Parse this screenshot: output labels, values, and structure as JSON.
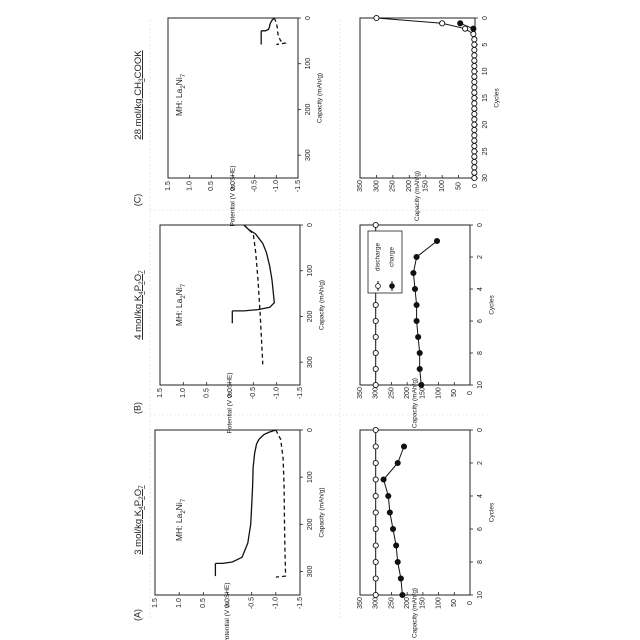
{
  "columns": [
    {
      "letter": "(A)",
      "title_main": "3 mol/kg K",
      "title_sub1": "4",
      "title_mid": "P",
      "title_sub2": "2",
      "title_end": "O",
      "title_sub3": "7",
      "mh_main": "MH: La",
      "mh_sub1": "2",
      "mh_mid": "Ni",
      "mh_sub2": "7"
    },
    {
      "letter": "(B)",
      "title_main": "4 mol/kg K",
      "title_sub1": "4",
      "title_mid": "P",
      "title_sub2": "2",
      "title_end": "O",
      "title_sub3": "7",
      "mh_main": "MH: La",
      "mh_sub1": "2",
      "mh_mid": "Ni",
      "mh_sub2": "7"
    },
    {
      "letter": "(C)",
      "title_main": "28 mol/kg CH",
      "title_sub1": "3",
      "title_mid": "COOK",
      "title_sub2": "",
      "title_end": "",
      "title_sub3": "",
      "mh_main": "MH: La",
      "mh_sub1": "2",
      "mh_mid": "Ni",
      "mh_sub2": "7"
    }
  ],
  "chart_data": [
    {
      "panel": "A-top",
      "type": "line",
      "xlabel": "Capacity (mAh/g)",
      "ylabel": "Potential (V vs. SHE)",
      "xlim": [
        0,
        350
      ],
      "ylim": [
        -1.5,
        1.5
      ],
      "xticks": [
        "0",
        "100",
        "200",
        "300"
      ],
      "yticks": [
        "1.5",
        "1.0",
        "0.5",
        "0.0",
        "-0.5",
        "-1.0",
        "-1.5"
      ],
      "series": [
        {
          "style": "solid",
          "x": [
            0,
            5,
            10,
            20,
            30,
            50,
            80,
            120,
            160,
            200,
            240,
            270,
            280,
            283,
            283
          ],
          "y": [
            -1.0,
            -0.85,
            -0.75,
            -0.65,
            -0.6,
            -0.56,
            -0.53,
            -0.52,
            -0.5,
            -0.48,
            -0.42,
            -0.3,
            -0.1,
            0.1,
            0.25
          ]
        },
        {
          "style": "solid",
          "x": [
            283,
            310
          ],
          "y": [
            0.25,
            0.25
          ]
        },
        {
          "style": "dashed",
          "x": [
            0,
            20,
            60,
            120,
            200,
            260,
            300,
            310,
            312
          ],
          "y": [
            -1.0,
            -1.1,
            -1.15,
            -1.17,
            -1.18,
            -1.19,
            -1.2,
            -1.2,
            -1.0
          ]
        }
      ]
    },
    {
      "panel": "B-top",
      "type": "line",
      "xlabel": "Capacity (mAh/g)",
      "ylabel": "Potential (V vs. SHE)",
      "xlim": [
        0,
        350
      ],
      "ylim": [
        -1.5,
        1.5
      ],
      "xticks": [
        "0",
        "100",
        "200",
        "300"
      ],
      "yticks": [
        "1.5",
        "1.0",
        "0.5",
        "0.0",
        "-0.5",
        "-1.0",
        "-1.5"
      ],
      "series": [
        {
          "style": "solid",
          "x": [
            0,
            10,
            20,
            40,
            60,
            90,
            120,
            150,
            170,
            180,
            185,
            188,
            188
          ],
          "y": [
            -0.3,
            -0.4,
            -0.55,
            -0.7,
            -0.78,
            -0.85,
            -0.9,
            -0.93,
            -0.95,
            -0.85,
            -0.6,
            -0.3,
            -0.05
          ]
        },
        {
          "style": "solid",
          "x": [
            188,
            215
          ],
          "y": [
            -0.05,
            -0.05
          ]
        },
        {
          "style": "dashed",
          "x": [
            0,
            20,
            60,
            120,
            200,
            260,
            300,
            305
          ],
          "y": [
            -0.3,
            -0.5,
            -0.55,
            -0.6,
            -0.65,
            -0.68,
            -0.7,
            -0.7
          ]
        }
      ]
    },
    {
      "panel": "C-top",
      "type": "line",
      "xlabel": "Capacity (mAh/g)",
      "ylabel": "Potential (V vs. SHE)",
      "xlim": [
        0,
        350
      ],
      "ylim": [
        -1.5,
        1.5
      ],
      "xticks": [
        "0",
        "100",
        "200",
        "300"
      ],
      "yticks": [
        "1.5",
        "1.0",
        "0.5",
        "0.0",
        "-0.5",
        "-1.0",
        "-1.5"
      ],
      "series": [
        {
          "style": "solid",
          "x": [
            0,
            5,
            10,
            15,
            20,
            25,
            28,
            28
          ],
          "y": [
            -0.95,
            -0.9,
            -0.87,
            -0.85,
            -0.84,
            -0.82,
            -0.75,
            -0.65
          ]
        },
        {
          "style": "solid",
          "x": [
            28,
            58
          ],
          "y": [
            -0.65,
            -0.65
          ]
        },
        {
          "style": "dashed",
          "x": [
            0,
            10,
            20,
            30,
            40,
            50,
            55,
            58
          ],
          "y": [
            -0.95,
            -1.0,
            -1.02,
            -1.03,
            -1.05,
            -1.1,
            -1.2,
            -1.0
          ]
        }
      ]
    },
    {
      "panel": "A-bottom",
      "type": "scatter",
      "xlabel": "Cycles",
      "ylabel": "Capacity (mAh/g)",
      "xlim": [
        0,
        10
      ],
      "ylim": [
        0,
        350
      ],
      "xticks": [
        "0",
        "2",
        "4",
        "6",
        "8",
        "10"
      ],
      "yticks": [
        "350",
        "300",
        "250",
        "200",
        "150",
        "100",
        "50",
        "0"
      ],
      "series": [
        {
          "name": "discharge",
          "marker": "open",
          "x": [
            0,
            1,
            2,
            3,
            4,
            5,
            6,
            7,
            8,
            9,
            10
          ],
          "y": [
            300,
            300,
            300,
            300,
            300,
            300,
            300,
            300,
            300,
            300,
            300
          ]
        },
        {
          "name": "charge",
          "marker": "filled",
          "x": [
            1,
            2,
            3,
            4,
            5,
            6,
            7,
            8,
            9,
            10
          ],
          "y": [
            210,
            230,
            275,
            260,
            255,
            245,
            235,
            230,
            220,
            215
          ]
        }
      ]
    },
    {
      "panel": "B-bottom",
      "type": "scatter",
      "xlabel": "Cycles",
      "ylabel": "Capacity (mAh/g)",
      "xlim": [
        0,
        10
      ],
      "ylim": [
        0,
        350
      ],
      "xticks": [
        "0",
        "2",
        "4",
        "6",
        "8",
        "10"
      ],
      "yticks": [
        "350",
        "300",
        "250",
        "200",
        "150",
        "100",
        "50",
        "0"
      ],
      "legend": {
        "position": "inside-top",
        "entries": [
          "discharge",
          "charge"
        ]
      },
      "series": [
        {
          "name": "discharge",
          "marker": "open",
          "x": [
            0,
            1,
            2,
            3,
            4,
            5,
            6,
            7,
            8,
            9,
            10
          ],
          "y": [
            300,
            300,
            300,
            300,
            300,
            300,
            300,
            300,
            300,
            300,
            300
          ]
        },
        {
          "name": "charge",
          "marker": "filled",
          "x": [
            1,
            2,
            3,
            4,
            5,
            6,
            7,
            8,
            9,
            10
          ],
          "y": [
            105,
            170,
            180,
            175,
            170,
            170,
            165,
            160,
            160,
            155
          ]
        }
      ]
    },
    {
      "panel": "C-bottom",
      "type": "scatter",
      "xlabel": "Cycles",
      "ylabel": "Capacity (mAh/g)",
      "xlim": [
        0,
        30
      ],
      "ylim": [
        0,
        350
      ],
      "xticks": [
        "0",
        "5",
        "10",
        "15",
        "20",
        "25",
        "30"
      ],
      "yticks": [
        "350",
        "300",
        "250",
        "200",
        "150",
        "100",
        "50",
        "0"
      ],
      "series": [
        {
          "name": "discharge",
          "marker": "open",
          "x": [
            0,
            1,
            2,
            3,
            4,
            5,
            6,
            7,
            8,
            9,
            10,
            11,
            12,
            13,
            14,
            15,
            16,
            17,
            18,
            19,
            20,
            21,
            22,
            23,
            24,
            25,
            26,
            27,
            28,
            29,
            30
          ],
          "y": [
            300,
            100,
            30,
            5,
            2,
            2,
            2,
            2,
            2,
            2,
            2,
            2,
            2,
            2,
            2,
            2,
            2,
            2,
            2,
            2,
            2,
            2,
            2,
            2,
            2,
            2,
            2,
            2,
            2,
            2,
            2
          ]
        },
        {
          "name": "charge",
          "marker": "filled",
          "x": [
            1,
            2
          ],
          "y": [
            45,
            5
          ]
        }
      ]
    }
  ]
}
